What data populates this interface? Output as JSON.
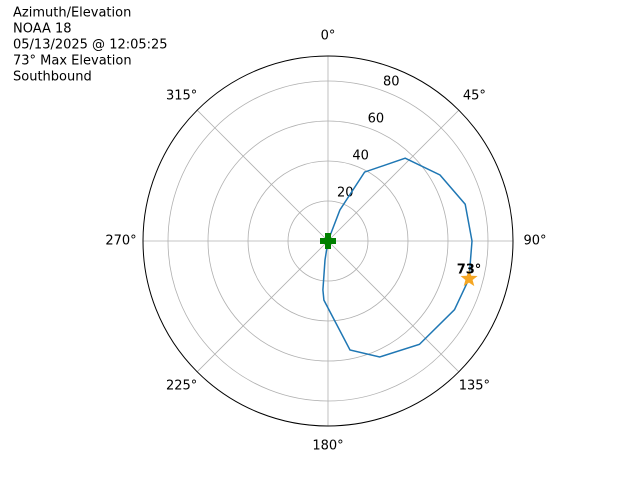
{
  "chart_data": {
    "type": "polar",
    "title_lines": [
      "Azimuth/Elevation",
      "NOAA 18",
      "05/13/2025 @ 12:05:25",
      "73° Max Elevation",
      "Southbound"
    ],
    "theta": [
      0,
      21,
      28,
      43,
      59.5,
      75,
      90,
      105,
      118.5,
      138.5,
      156,
      168.6,
      184,
      186,
      189,
      0
    ],
    "r": [
      0,
      16.6,
      39,
      56.6,
      65,
      71,
      72,
      73,
      72,
      69,
      63.5,
      55.6,
      29.6,
      24.6,
      9.6,
      0
    ],
    "color": "#1f77b4",
    "rlim": [
      0,
      92.5
    ],
    "rticks": [
      20,
      40,
      60,
      80
    ],
    "thetaticks": [
      {
        "value": 0,
        "label": "0°"
      },
      {
        "value": 45,
        "label": "45°"
      },
      {
        "value": 90,
        "label": "90°"
      },
      {
        "value": 135,
        "label": "135°"
      },
      {
        "value": 180,
        "label": "180°"
      },
      {
        "value": 225,
        "label": "225°"
      },
      {
        "value": 270,
        "label": "270°"
      },
      {
        "value": 315,
        "label": "315°"
      }
    ],
    "grid": true,
    "max_marker": {
      "theta": 105,
      "r": 73,
      "label": "73°",
      "color": "#f5a623"
    },
    "start_marker": {
      "theta": 0,
      "r": 0,
      "color": "#008000"
    }
  }
}
